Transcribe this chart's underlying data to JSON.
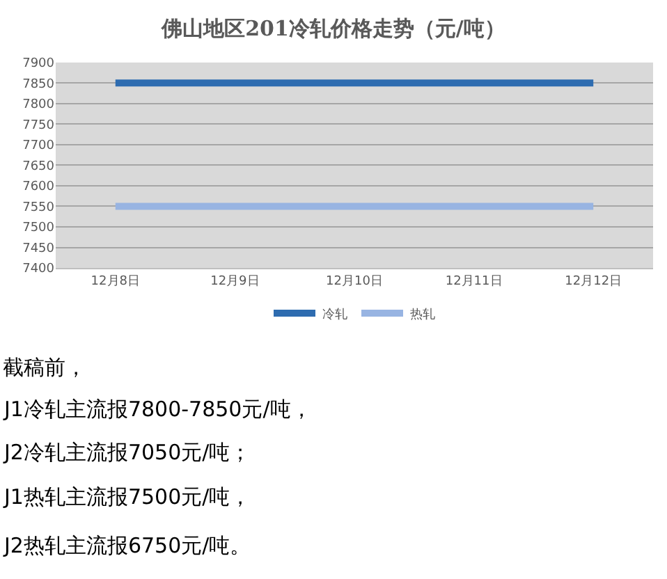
{
  "chart_data": {
    "type": "line",
    "title": "佛山地区201冷轧价格走势（元/吨）",
    "categories": [
      "12月8日",
      "12月9日",
      "12月10日",
      "12月11日",
      "12月12日"
    ],
    "series": [
      {
        "name": "冷轧",
        "color": "#2e6cb0",
        "values": [
          7850,
          7850,
          7850,
          7850,
          7850
        ]
      },
      {
        "name": "热轧",
        "color": "#98b4e2",
        "values": [
          7550,
          7550,
          7550,
          7550,
          7550
        ]
      }
    ],
    "ylim": [
      7400,
      7900
    ],
    "yticks": [
      7400,
      7450,
      7500,
      7550,
      7600,
      7650,
      7700,
      7750,
      7800,
      7850,
      7900
    ],
    "grid": "y",
    "legend": "bottom",
    "marker": "none",
    "line_style": "solid",
    "annotations": [
      "截稿前，",
      "J1冷轧主流报7800-7850元/吨，",
      "J2冷轧主流报7050元/吨；",
      "J1热轧主流报7500元/吨，",
      "J2热轧主流报6750元/吨。"
    ]
  }
}
